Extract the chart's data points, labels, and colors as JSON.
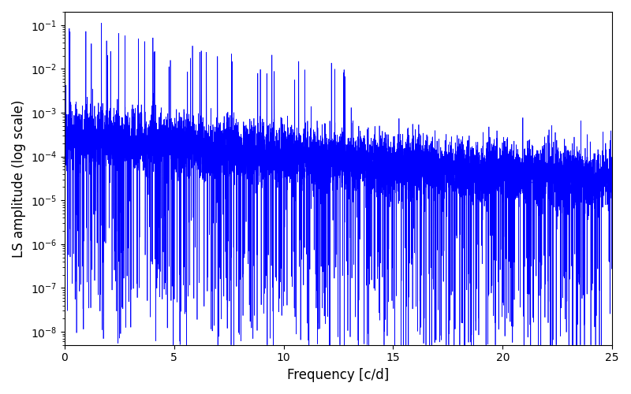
{
  "title": "",
  "xlabel": "Frequency [c/d]",
  "ylabel": "LS amplitude (log scale)",
  "xmin": 0,
  "xmax": 25,
  "ymin": 5e-09,
  "ymax": 0.2,
  "line_color": "#0000FF",
  "line_width": 0.5,
  "background_color": "#ffffff",
  "figsize": [
    8.0,
    5.0
  ],
  "dpi": 100
}
